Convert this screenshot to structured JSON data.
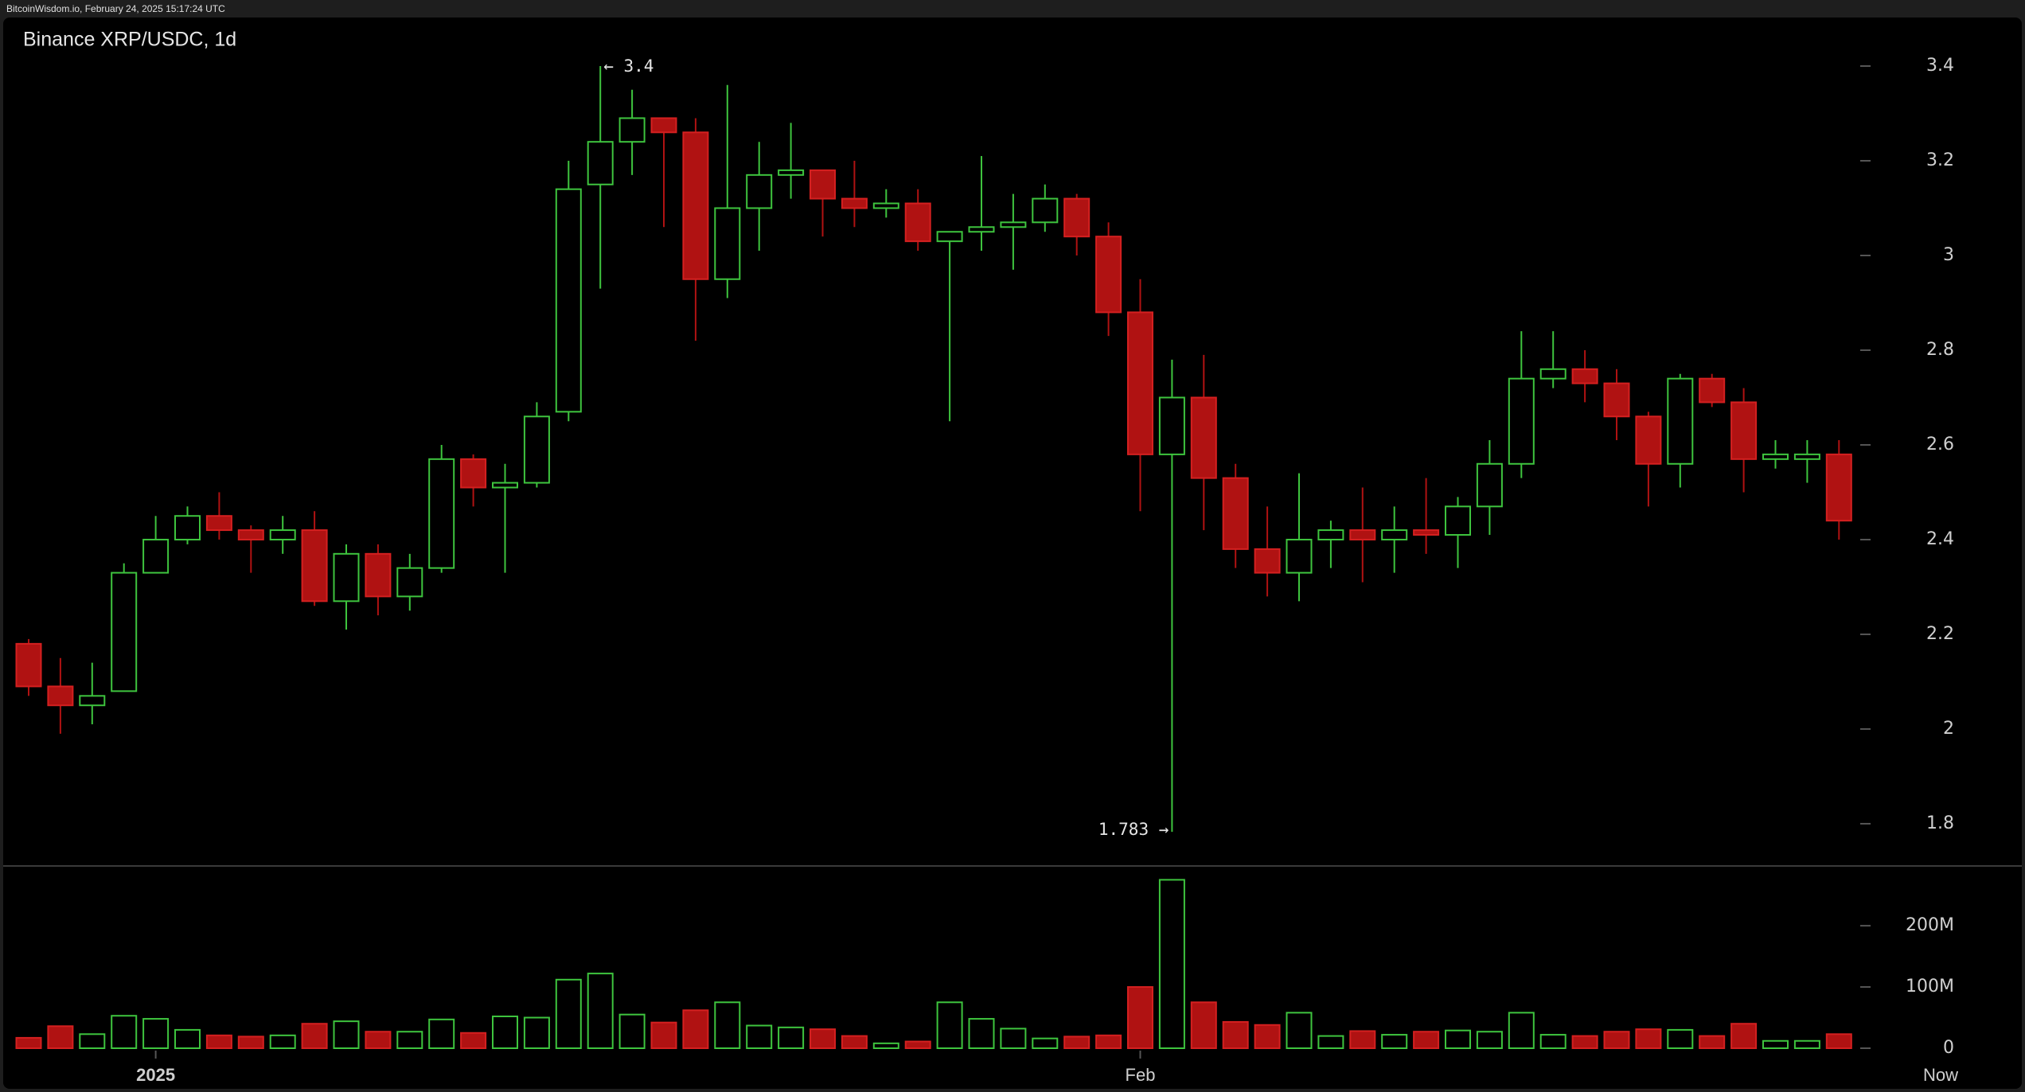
{
  "chart_data": {
    "type": "candlestick",
    "header": "BitcoinWisdom.io, February 24, 2025 15:17:24 UTC",
    "title": "Binance XRP/USDC, 1d",
    "high_annotation": "← 3.4",
    "low_annotation": "1.783 →",
    "now_label": "Now",
    "categories": [
      null,
      null,
      null,
      null,
      "2025",
      null,
      null,
      null,
      null,
      null,
      null,
      null,
      null,
      null,
      null,
      null,
      null,
      null,
      null,
      null,
      null,
      null,
      null,
      null,
      null,
      null,
      null,
      null,
      null,
      null,
      null,
      null,
      null,
      null,
      null,
      "Feb",
      null,
      null,
      null,
      null,
      null,
      null,
      null,
      null,
      null,
      null,
      null,
      null,
      null,
      null,
      null,
      null,
      null,
      null,
      null,
      null,
      null,
      null
    ],
    "open": [
      2.18,
      2.09,
      2.05,
      2.08,
      2.33,
      2.4,
      2.45,
      2.42,
      2.4,
      2.42,
      2.27,
      2.37,
      2.28,
      2.34,
      2.57,
      2.51,
      2.52,
      2.67,
      3.15,
      3.24,
      3.29,
      3.26,
      2.95,
      3.1,
      3.17,
      3.18,
      3.12,
      3.1,
      3.11,
      3.03,
      3.05,
      3.06,
      3.07,
      3.12,
      3.04,
      2.88,
      2.58,
      2.7,
      2.53,
      2.38,
      2.33,
      2.4,
      2.42,
      2.4,
      2.42,
      2.41,
      2.47,
      2.56,
      2.74,
      2.76,
      2.73,
      2.66,
      2.56,
      2.74,
      2.69,
      2.57,
      2.57,
      2.58
    ],
    "high": [
      2.19,
      2.15,
      2.14,
      2.35,
      2.45,
      2.47,
      2.5,
      2.43,
      2.45,
      2.46,
      2.39,
      2.39,
      2.37,
      2.6,
      2.58,
      2.56,
      2.69,
      3.2,
      3.4,
      3.35,
      3.29,
      3.29,
      3.36,
      3.24,
      3.28,
      3.18,
      3.2,
      3.14,
      3.14,
      3.05,
      3.21,
      3.13,
      3.15,
      3.13,
      3.07,
      2.95,
      2.78,
      2.79,
      2.56,
      2.47,
      2.54,
      2.44,
      2.51,
      2.47,
      2.53,
      2.49,
      2.61,
      2.84,
      2.84,
      2.8,
      2.76,
      2.67,
      2.75,
      2.75,
      2.72,
      2.61,
      2.61,
      2.61
    ],
    "low": [
      2.07,
      1.99,
      2.01,
      2.08,
      2.33,
      2.39,
      2.4,
      2.33,
      2.37,
      2.26,
      2.21,
      2.24,
      2.25,
      2.33,
      2.47,
      2.33,
      2.51,
      2.65,
      2.93,
      3.17,
      3.06,
      2.82,
      2.91,
      3.01,
      3.12,
      3.04,
      3.06,
      3.08,
      3.01,
      2.65,
      3.01,
      2.97,
      3.05,
      3.0,
      2.83,
      2.46,
      1.783,
      2.42,
      2.34,
      2.28,
      2.27,
      2.34,
      2.31,
      2.33,
      2.37,
      2.34,
      2.41,
      2.53,
      2.72,
      2.69,
      2.61,
      2.47,
      2.51,
      2.68,
      2.5,
      2.55,
      2.52,
      2.4
    ],
    "close": [
      2.09,
      2.05,
      2.07,
      2.33,
      2.4,
      2.45,
      2.42,
      2.4,
      2.42,
      2.27,
      2.37,
      2.28,
      2.34,
      2.57,
      2.51,
      2.52,
      2.66,
      3.14,
      3.24,
      3.29,
      3.26,
      2.95,
      3.1,
      3.17,
      3.18,
      3.12,
      3.1,
      3.11,
      3.03,
      3.05,
      3.06,
      3.07,
      3.12,
      3.04,
      2.88,
      2.58,
      2.7,
      2.53,
      2.38,
      2.33,
      2.4,
      2.42,
      2.4,
      2.42,
      2.41,
      2.47,
      2.56,
      2.74,
      2.76,
      2.73,
      2.66,
      2.56,
      2.74,
      2.69,
      2.57,
      2.58,
      2.58,
      2.44
    ],
    "volume": [
      17000000,
      36000000,
      23000000,
      53000000,
      48000000,
      30000000,
      21000000,
      19000000,
      21000000,
      40000000,
      44000000,
      27000000,
      27000000,
      47000000,
      25000000,
      52000000,
      50000000,
      112000000,
      122000000,
      55000000,
      42000000,
      62000000,
      75000000,
      37000000,
      34000000,
      31000000,
      20000000,
      8000000,
      11000000,
      75000000,
      48000000,
      32000000,
      16000000,
      19000000,
      21000000,
      100000000,
      275000000,
      75000000,
      43000000,
      38000000,
      58000000,
      20000000,
      28000000,
      22000000,
      27000000,
      29000000,
      27000000,
      58000000,
      22000000,
      20000000,
      27000000,
      31000000,
      30000000,
      20000000,
      40000000,
      12000000,
      12000000,
      23000000
    ],
    "ylim": [
      1.71,
      3.5
    ],
    "yticks": [
      1.8,
      2,
      2.2,
      2.4,
      2.6,
      2.8,
      3,
      3.2,
      3.4
    ],
    "y2lim": [
      0,
      295000000
    ],
    "y2ticks": [
      0,
      {
        "value": 100000000,
        "label": "100M"
      },
      {
        "value": 200000000,
        "label": "200M"
      }
    ],
    "up_color": "#3ec43e",
    "down_color": "#b01212",
    "down_edge_color": "#d42020"
  }
}
